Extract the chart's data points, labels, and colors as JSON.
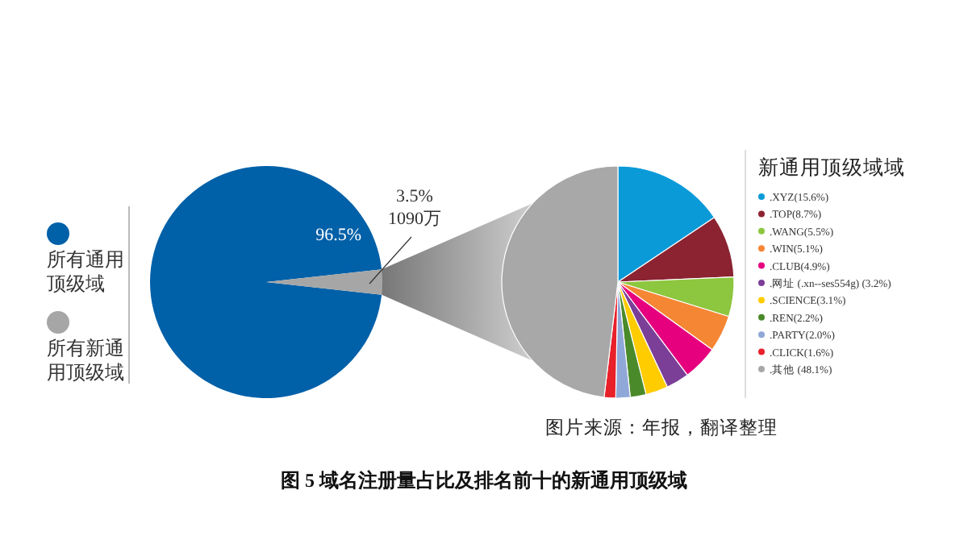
{
  "chart_data": [
    {
      "type": "pie",
      "categories": [
        "所有通用顶级域",
        "所有新通用顶级域"
      ],
      "values": [
        96.5,
        3.5
      ],
      "colors": [
        "#0060a8",
        "#a6a6a6"
      ],
      "value_labels": [
        "96.5%",
        "3.5%\n1090万"
      ],
      "legend": "left"
    },
    {
      "type": "pie",
      "title": "图 5  域名注册量占比及排名前十的新通用顶级域",
      "legend_title": "新通用顶级域域",
      "annotations": [
        "图片来源：年报，翻译整理"
      ],
      "legend": "right",
      "categories": [
        ".XYZ(15.6%)",
        ".TOP(8.7%)",
        ".WANG(5.5%)",
        ".WIN(5.1%)",
        ".CLUB(4.9%)",
        ".网址 (.xn--ses554g) (3.2%)",
        ".SCIENCE(3.1%)",
        ".REN(2.2%)",
        ".PARTY(2.0%)",
        ".CLICK(1.6%)",
        ".其他 (48.1%)"
      ],
      "values": [
        15.6,
        8.7,
        5.5,
        5.1,
        4.9,
        3.2,
        3.1,
        2.2,
        2.0,
        1.6,
        48.1
      ],
      "colors": [
        "#0a9ad8",
        "#8b2331",
        "#8dc63f",
        "#f58634",
        "#e6007e",
        "#7b3f98",
        "#ffcc00",
        "#4a8a2a",
        "#8fa8d8",
        "#e8202a",
        "#a8a8a8"
      ]
    }
  ]
}
